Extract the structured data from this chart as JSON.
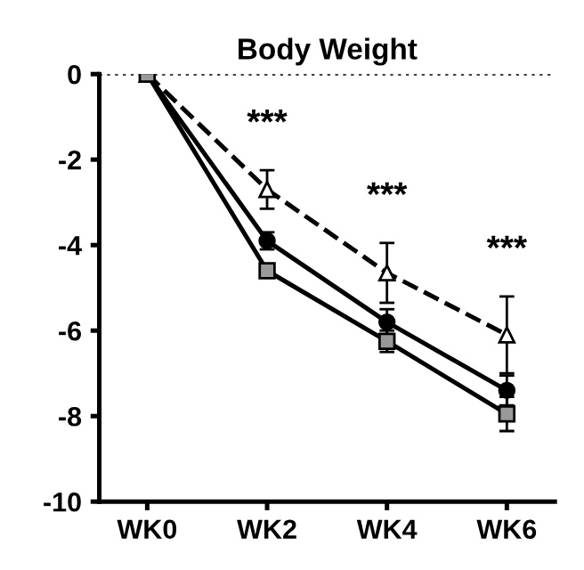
{
  "chart_data": {
    "type": "line",
    "title": "Body Weight",
    "categories": [
      "WK0",
      "WK2",
      "WK4",
      "WK6"
    ],
    "series": [
      {
        "color": "#000000",
        "values": [
          0,
          -2.7,
          -4.65,
          -6.1
        ],
        "errors": [
          null,
          0.45,
          0.7,
          0.9
        ],
        "marker": "triangle",
        "line_style": "dashed"
      },
      {
        "color": "#000000",
        "values": [
          0,
          -3.9,
          -5.8,
          -7.4
        ],
        "errors": [
          null,
          0.2,
          0.3,
          0.35
        ],
        "marker": "circle",
        "line_style": "solid"
      },
      {
        "color": "#000000",
        "values": [
          0,
          -4.6,
          -6.25,
          -7.95
        ],
        "errors": [
          null,
          0.15,
          0.25,
          0.4
        ],
        "marker": "square",
        "line_style": "solid"
      }
    ],
    "ylim": [
      -10,
      0
    ],
    "yticks": [
      0,
      -2,
      -4,
      -6,
      -8,
      -10
    ],
    "ref_lines": [
      {
        "axis": "y",
        "value": 0,
        "line_style": "dotted",
        "color": "#000000"
      }
    ],
    "annotations": [
      "***",
      "***",
      "***"
    ],
    "grid": false,
    "legend": false
  }
}
